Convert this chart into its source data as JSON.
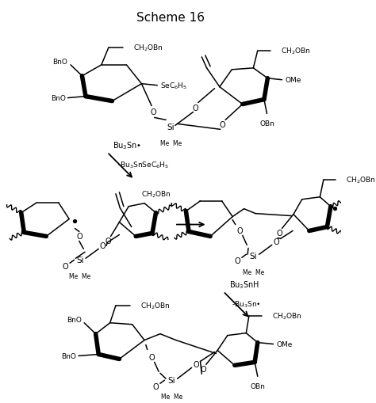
{
  "title": "Scheme 16",
  "bg_color": "#ffffff",
  "figsize": [
    4.74,
    5.1
  ],
  "dpi": 100,
  "title_fontsize": 11,
  "reagent1a": "Bu$_3$Sn•",
  "reagent1b": "-Bu$_3$SnSeC$_6$H$_5$",
  "reagent2a": "Bu$_3$SnH",
  "reagent2b": "-Bu$_3$Sn•"
}
